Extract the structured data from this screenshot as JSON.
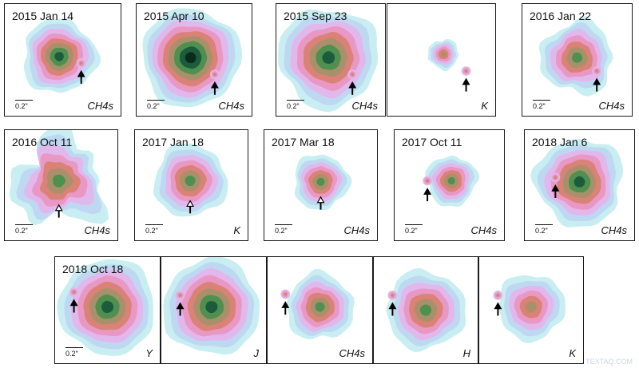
{
  "scale_label": "0.2\"",
  "watermark": "TEXTAQ.COM",
  "rows": [
    {
      "panels": [
        {
          "date": "2015 Jan 14",
          "band": "CH4s",
          "scale": true,
          "arrow": "solid"
        },
        {
          "date": "2015 Apr 10",
          "band": "CH4s",
          "scale": true,
          "arrow": "solid"
        },
        {
          "date": "2015 Sep 23",
          "band": "CH4s",
          "scale": true,
          "arrow": "solid"
        },
        {
          "date": "",
          "band": "K",
          "scale": false,
          "arrow": "solid"
        },
        {
          "date": "2016 Jan 22",
          "band": "CH4s",
          "scale": true,
          "arrow": "solid"
        }
      ]
    },
    {
      "panels": [
        {
          "date": "2016 Oct 11",
          "band": "CH4s",
          "scale": true,
          "arrow": "open"
        },
        {
          "date": "2017 Jan 18",
          "band": "K",
          "scale": true,
          "arrow": "open"
        },
        {
          "date": "2017 Mar 18",
          "band": "CH4s",
          "scale": true,
          "arrow": "open"
        },
        {
          "date": "2017 Oct 11",
          "band": "CH4s",
          "scale": true,
          "arrow": "solid"
        },
        {
          "date": "2018 Jan 6",
          "band": "CH4s",
          "scale": true,
          "arrow": "solid"
        }
      ]
    },
    {
      "panels": [
        {
          "date": "2018 Oct 18",
          "band": "Y",
          "scale": true,
          "arrow": "solid"
        },
        {
          "date": "",
          "band": "J",
          "scale": false,
          "arrow": "solid"
        },
        {
          "date": "",
          "band": "CH4s",
          "scale": false,
          "arrow": "solid"
        },
        {
          "date": "",
          "band": "H",
          "scale": false,
          "arrow": "solid"
        },
        {
          "date": "",
          "band": "K",
          "scale": false,
          "arrow": "solid"
        }
      ]
    }
  ],
  "colors": {
    "contours": [
      "#c9eef2",
      "#bfd8f2",
      "#e1b7ec",
      "#e898c3",
      "#d98275",
      "#a8906a",
      "#4f8f4f",
      "#1c5c3c",
      "#0a2a1a"
    ],
    "border": "#1a1a1a",
    "arrow": "#000000"
  }
}
